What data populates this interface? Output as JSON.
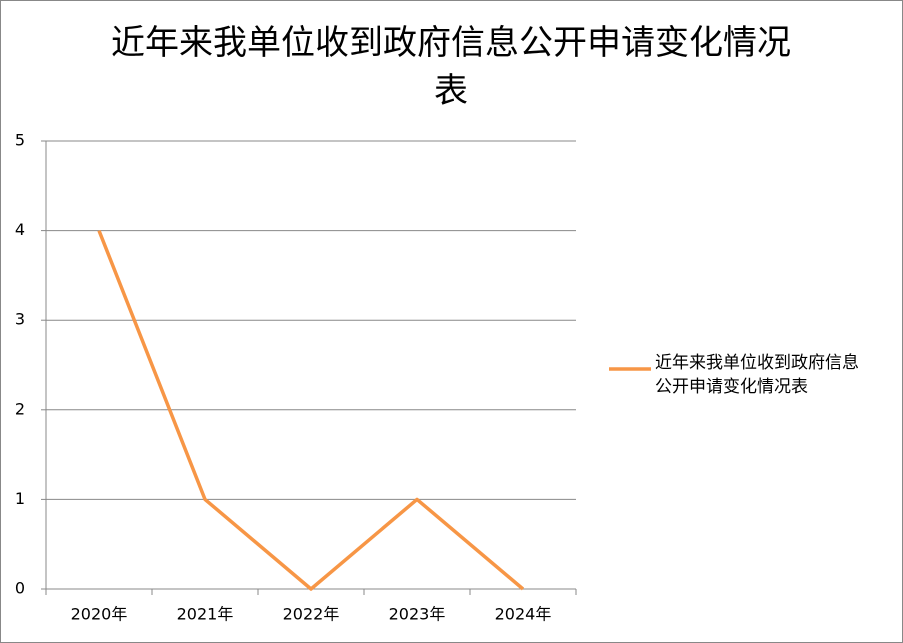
{
  "chart_data": {
    "type": "line",
    "title": "近年来我单位收到政府信息公开申请变化情况表",
    "categories": [
      "2020年",
      "2021年",
      "2022年",
      "2023年",
      "2024年"
    ],
    "series": [
      {
        "name": "近年来我单位收到政府信息公开申请变化情况表",
        "color": "#f79646",
        "values": [
          4,
          1,
          0,
          1,
          0
        ]
      }
    ],
    "ylim": [
      0,
      5
    ],
    "yticks": [
      0,
      1,
      2,
      3,
      4,
      5
    ],
    "grid": true,
    "legend": "right"
  }
}
